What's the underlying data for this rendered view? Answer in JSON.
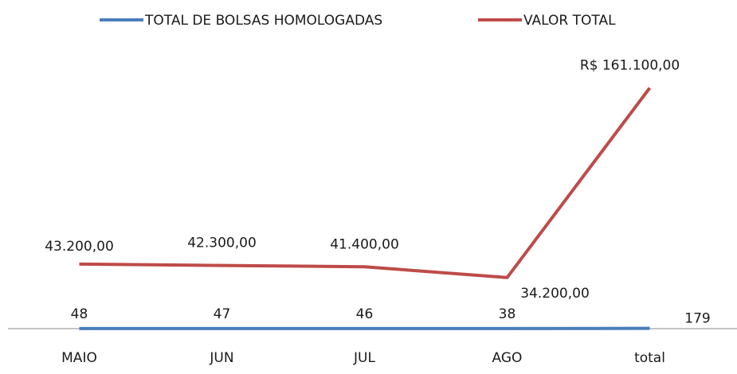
{
  "chart_data": {
    "type": "line",
    "categories": [
      "MAIO",
      "JUN",
      "JUL",
      "AGO",
      "total"
    ],
    "series": [
      {
        "name": "TOTAL DE BOLSAS HOMOLOGADAS",
        "color": "#4a7ebb",
        "values": [
          48,
          47,
          46,
          38,
          179
        ]
      },
      {
        "name": "VALOR TOTAL",
        "color": "#be4b48",
        "values": [
          43200,
          42300,
          41400,
          34200,
          161100
        ],
        "value_labels": [
          "43.200,00",
          "42.300,00",
          "41.400,00",
          "34.200,00",
          "R$ 161.100,00"
        ]
      }
    ],
    "ylim": [
      0,
      180000
    ]
  }
}
